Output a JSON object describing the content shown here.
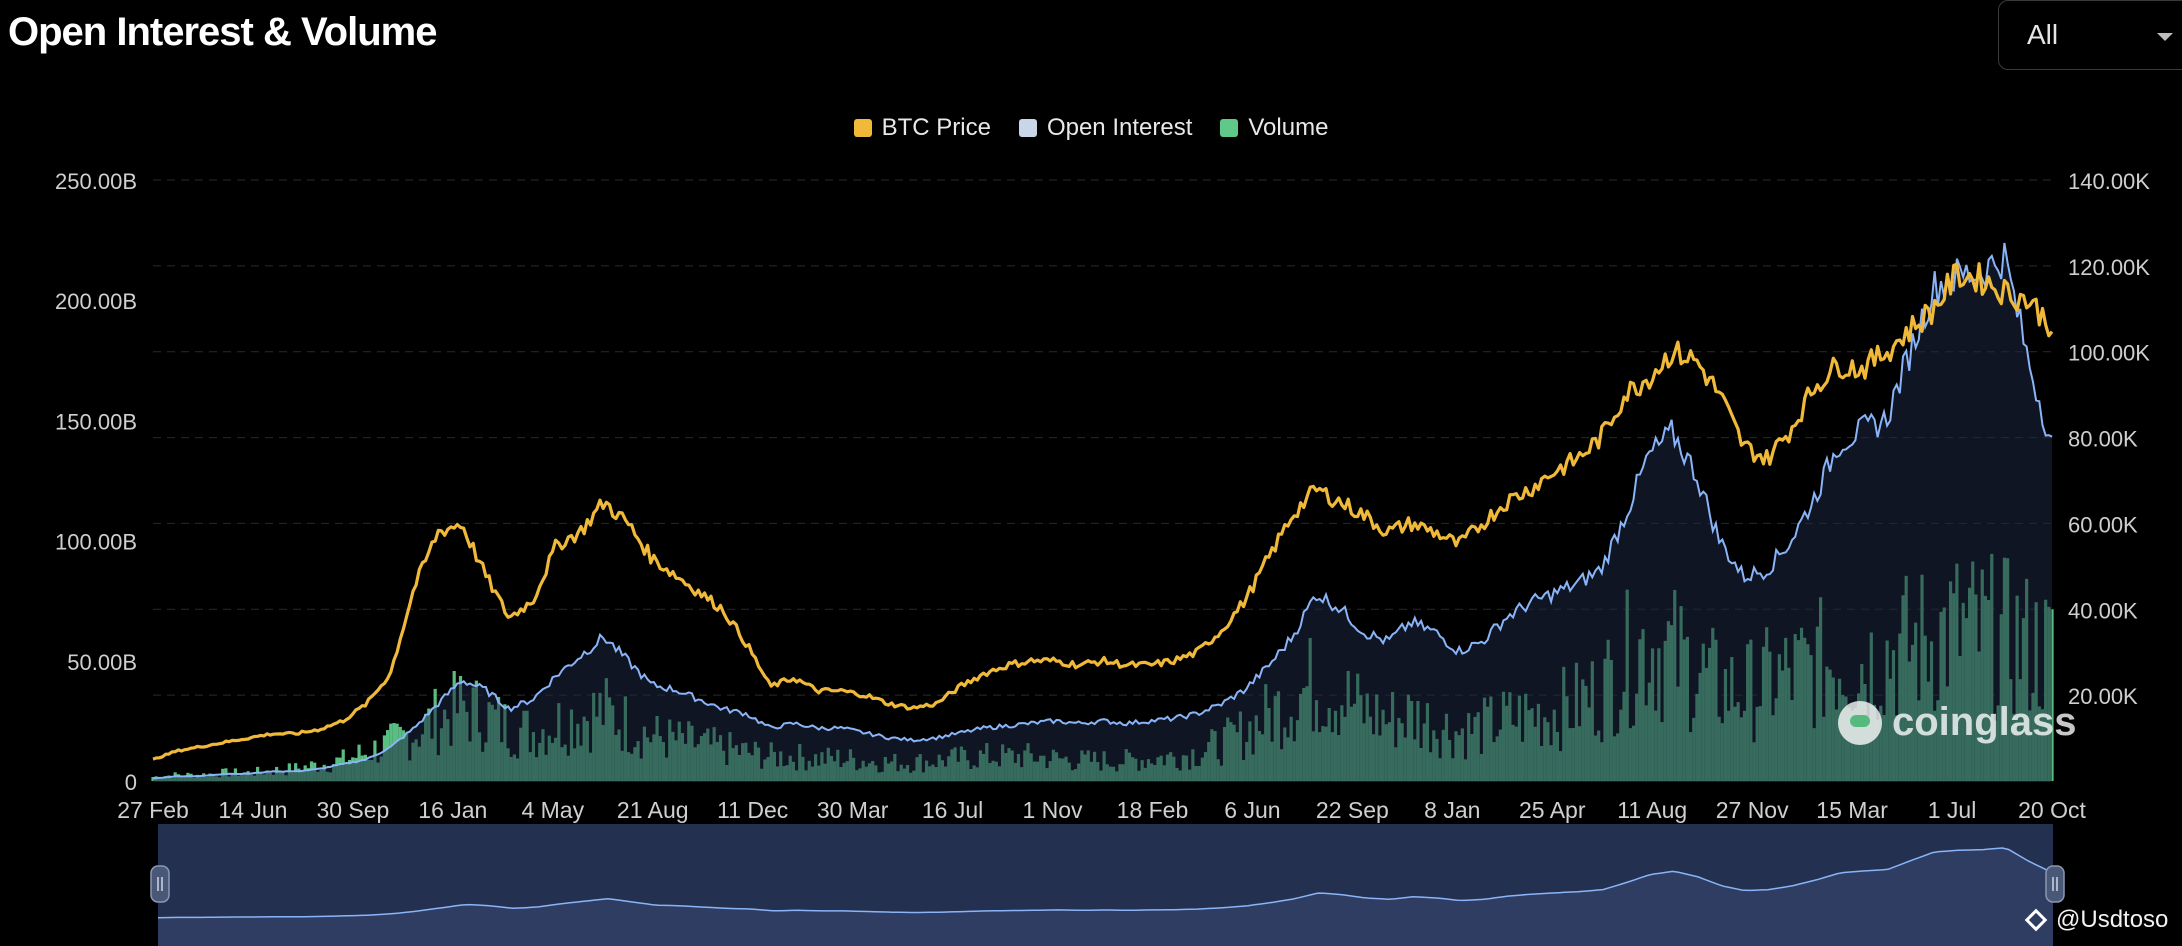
{
  "header": {
    "title": "Open Interest & Volume",
    "range_select": {
      "value": "All"
    }
  },
  "credit": {
    "handle": "@Usdtoso"
  },
  "watermark": {
    "text": "coinglass"
  },
  "colors": {
    "background": "#000000",
    "price": "#f0b939",
    "open_interest": "#8ab4f8",
    "volume": "#5fc98a",
    "navigator_fill": "#23304f"
  },
  "chart_data": {
    "type": "line",
    "title": "Open Interest & Volume",
    "legend_position": "top-center",
    "grid": true,
    "x_tick_labels": [
      "27 Feb",
      "14 Jun",
      "30 Sep",
      "16 Jan",
      "4 May",
      "21 Aug",
      "11 Dec",
      "30 Mar",
      "16 Jul",
      "1 Nov",
      "18 Feb",
      "6 Jun",
      "22 Sep",
      "8 Jan",
      "25 Apr",
      "11 Aug",
      "27 Nov",
      "15 Mar",
      "1 Jul",
      "20 Oct"
    ],
    "y_left": {
      "ticks": [
        "0",
        "50.00B",
        "100.00B",
        "150.00B",
        "200.00B",
        "250.00B"
      ],
      "range": [
        0,
        250
      ]
    },
    "y_right": {
      "ticks": [
        "20.00K",
        "40.00K",
        "60.00K",
        "80.00K",
        "100.00K",
        "120.00K",
        "140.00K"
      ],
      "range": [
        0,
        140
      ]
    },
    "series": [
      {
        "name": "BTC Price",
        "axis": "right",
        "values": [
          5,
          7,
          8,
          9,
          10,
          11,
          11,
          12,
          14,
          18,
          25,
          45,
          58,
          60,
          48,
          38,
          42,
          55,
          58,
          65,
          60,
          52,
          48,
          44,
          40,
          32,
          22,
          24,
          21,
          21,
          20,
          18,
          17,
          18,
          22,
          25,
          27,
          28,
          28,
          27,
          28,
          27,
          27,
          28,
          30,
          35,
          42,
          52,
          62,
          68,
          65,
          62,
          58,
          60,
          58,
          55,
          60,
          65,
          68,
          72,
          75,
          80,
          90,
          94,
          100,
          98,
          90,
          78,
          75,
          82,
          92,
          97,
          96,
          100,
          105,
          110,
          118,
          117,
          114,
          112,
          106
        ]
      },
      {
        "name": "Open Interest",
        "axis": "left",
        "values": [
          1,
          2,
          2,
          3,
          3,
          4,
          4,
          5,
          7,
          9,
          14,
          22,
          32,
          42,
          38,
          30,
          34,
          44,
          52,
          60,
          50,
          40,
          38,
          34,
          30,
          28,
          22,
          24,
          22,
          22,
          20,
          18,
          17,
          18,
          20,
          22,
          23,
          24,
          25,
          24,
          25,
          24,
          25,
          26,
          28,
          32,
          38,
          48,
          60,
          78,
          72,
          62,
          58,
          66,
          62,
          54,
          58,
          68,
          74,
          78,
          82,
          88,
          110,
          135,
          145,
          128,
          100,
          85,
          88,
          100,
          118,
          140,
          146,
          150,
          178,
          205,
          210,
          212,
          218,
          175,
          140
        ]
      },
      {
        "name": "Volume",
        "axis": "left",
        "values": [
          2,
          3,
          3,
          4,
          4,
          5,
          6,
          8,
          10,
          14,
          18,
          24,
          30,
          36,
          32,
          26,
          24,
          28,
          32,
          34,
          28,
          22,
          20,
          18,
          16,
          14,
          12,
          12,
          11,
          11,
          10,
          9,
          9,
          10,
          11,
          12,
          12,
          12,
          11,
          10,
          10,
          10,
          11,
          12,
          14,
          18,
          24,
          32,
          40,
          48,
          42,
          34,
          30,
          32,
          28,
          24,
          26,
          30,
          32,
          34,
          38,
          44,
          58,
          68,
          62,
          54,
          46,
          44,
          48,
          52,
          56,
          60,
          58,
          62,
          66,
          70,
          74,
          72,
          70,
          66,
          62
        ]
      }
    ]
  }
}
